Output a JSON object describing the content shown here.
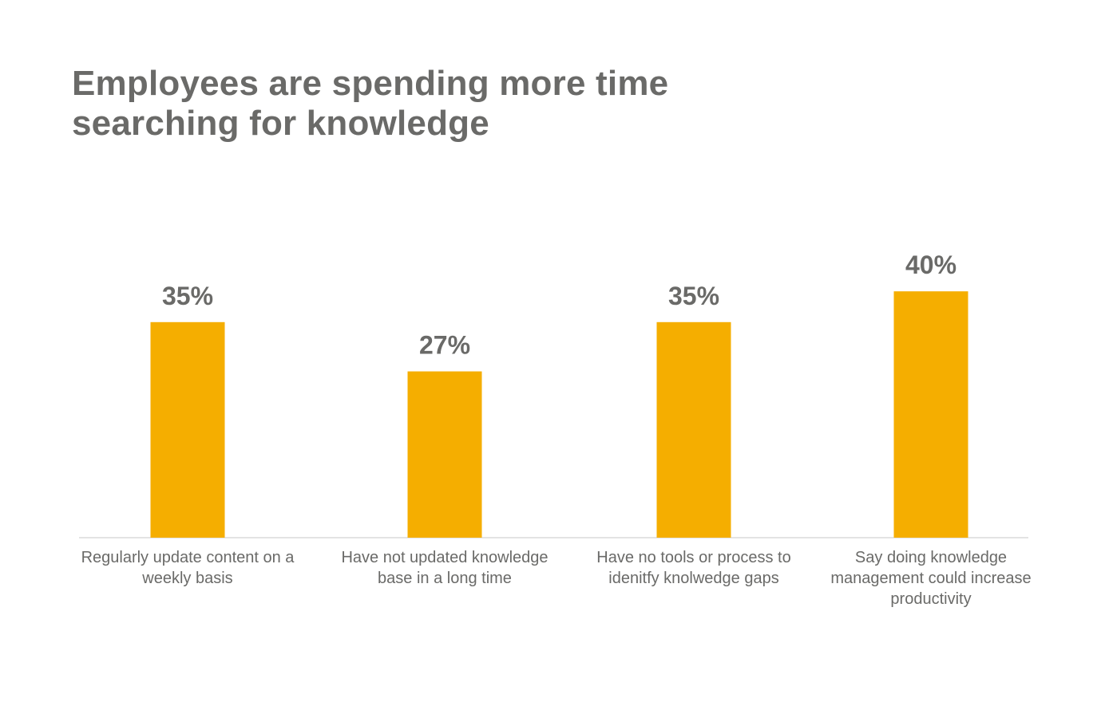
{
  "title_lines": [
    "Employees are spending more time",
    "searching for knowledge"
  ],
  "colors": {
    "bar": "#f5ae00",
    "text": "#6a6a68",
    "baseline": "#e3e3e3"
  },
  "chart_data": {
    "type": "bar",
    "title": "Employees are spending more time searching for knowledge",
    "categories": [
      [
        "Regularly update content on a",
        "weekly basis"
      ],
      [
        "Have not updated knowledge",
        "base in a long time"
      ],
      [
        "Have no tools or process to",
        "idenitfy knolwedge gaps"
      ],
      [
        "Say doing knowledge",
        "management could increase",
        "productivity"
      ]
    ],
    "values": [
      35,
      27,
      35,
      40
    ],
    "value_labels": [
      "35%",
      "27%",
      "35%",
      "40%"
    ],
    "unit": "%",
    "xlabel": "",
    "ylabel": "",
    "ylim": [
      0,
      100
    ],
    "grid": false,
    "legend": "none"
  }
}
